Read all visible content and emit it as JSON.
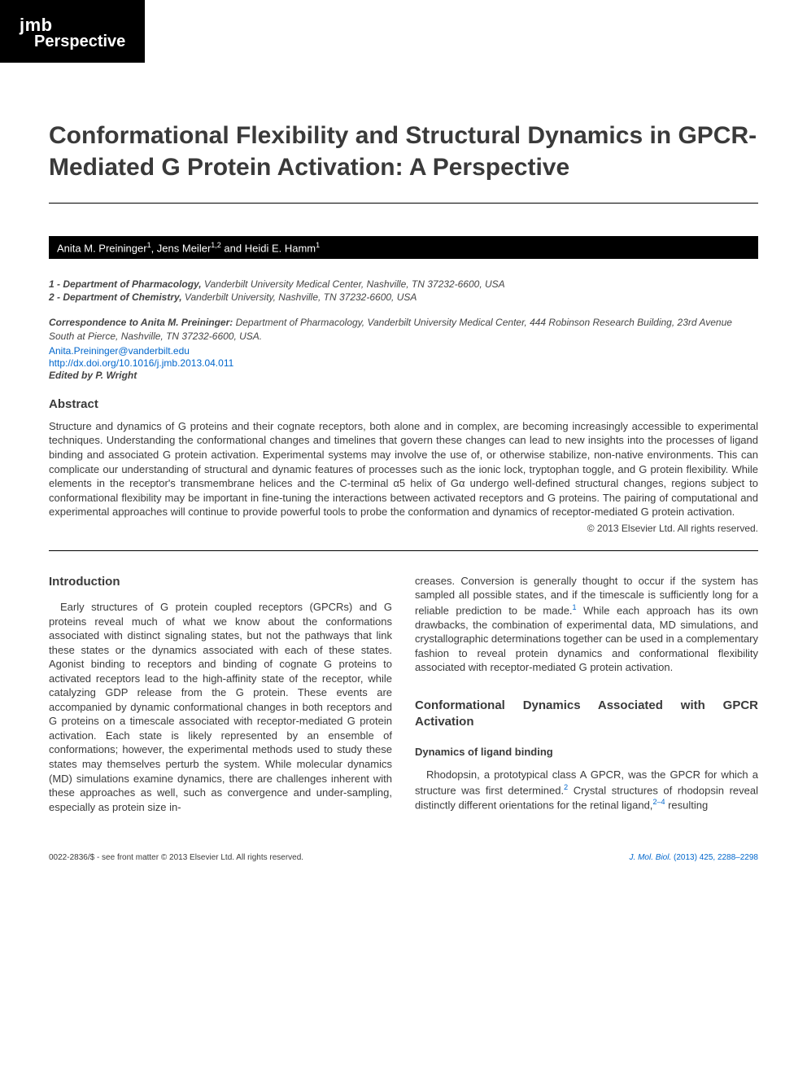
{
  "badge": {
    "line1": "jmb",
    "line2": "Perspective"
  },
  "title": "Conformational Flexibility and Structural Dynamics in GPCR-Mediated G Protein Activation: A Perspective",
  "authors_html": "Anita M. Preininger<sup>1</sup>, Jens Meiler<sup>1,2</sup> and Heidi E. Hamm<sup>1</sup>",
  "affiliations": [
    {
      "num": "1",
      "dept": "Department of Pharmacology,",
      "rest": " Vanderbilt University Medical Center, Nashville, TN 37232-6600, USA"
    },
    {
      "num": "2",
      "dept": "Department of Chemistry,",
      "rest": " Vanderbilt University, Nashville, TN 37232-6600, USA"
    }
  ],
  "correspondence": {
    "label": "Correspondence to Anita M. Preininger:",
    "text": " Department of Pharmacology, Vanderbilt University Medical Center, 444 Robinson Research Building, 23rd Avenue South at Pierce, Nashville, TN 37232-6600, USA."
  },
  "email": "Anita.Preininger@vanderbilt.edu",
  "doi": "http://dx.doi.org/10.1016/j.jmb.2013.04.011",
  "edited": "Edited by P. Wright",
  "abstract": {
    "heading": "Abstract",
    "text": "Structure and dynamics of G proteins and their cognate receptors, both alone and in complex, are becoming increasingly accessible to experimental techniques. Understanding the conformational changes and timelines that govern these changes can lead to new insights into the processes of ligand binding and associated G protein activation. Experimental systems may involve the use of, or otherwise stabilize, non-native environments. This can complicate our understanding of structural and dynamic features of processes such as the ionic lock, tryptophan toggle, and G protein flexibility. While elements in the receptor's transmembrane helices and the C-terminal α5 helix of Gα undergo well-defined structural changes, regions subject to conformational flexibility may be important in fine-tuning the interactions between activated receptors and G proteins. The pairing of computational and experimental approaches will continue to provide powerful tools to probe the conformation and dynamics of receptor-mediated G protein activation.",
    "copyright": "© 2013 Elsevier Ltd. All rights reserved."
  },
  "body": {
    "intro_heading": "Introduction",
    "intro_col1": "Early structures of G protein coupled receptors (GPCRs) and G proteins reveal much of what we know about the conformations associated with distinct signaling states, but not the pathways that link these states or the dynamics associated with each of these states. Agonist binding to receptors and binding of cognate G proteins to activated receptors lead to the high-affinity state of the receptor, while catalyzing GDP release from the G protein. These events are accompanied by dynamic conformational changes in both receptors and G proteins on a timescale associated with receptor-mediated G protein activation. Each state is likely represented by an ensemble of conformations; however, the experimental methods used to study these states may themselves perturb the system. While molecular dynamics (MD) simulations examine dynamics, there are challenges inherent with these approaches as well, such as convergence and under-sampling, especially as protein size in-",
    "intro_col2_a": "creases. Conversion is generally thought to occur if the system has sampled all possible states, and if the timescale is sufficiently long for a reliable prediction to be made.",
    "intro_col2_ref1": "1",
    "intro_col2_b": " While each approach has its own drawbacks, the combination of experimental data, MD simulations, and crystallographic determinations together can be used in a complementary fashion to reveal protein dynamics and conformational flexibility associated with receptor-mediated G protein activation.",
    "section2_heading": "Conformational Dynamics Associated with GPCR Activation",
    "subsection_heading": "Dynamics of ligand binding",
    "section2_a": "Rhodopsin, a prototypical class A GPCR, was the GPCR for which a structure was first determined.",
    "section2_ref2": "2",
    "section2_b": " Crystal structures of rhodopsin reveal distinctly different orientations for the retinal ligand,",
    "section2_ref3": "2–4",
    "section2_c": " resulting"
  },
  "footer": {
    "left": "0022-2836/$ - see front matter © 2013 Elsevier Ltd. All rights reserved.",
    "right_journal": "J. Mol. Biol.",
    "right_rest": " (2013) 425, 2288–2298"
  },
  "colors": {
    "text": "#3a3a3a",
    "link": "#0066cc",
    "badge_bg": "#000000",
    "badge_fg": "#ffffff",
    "page_bg": "#ffffff"
  }
}
